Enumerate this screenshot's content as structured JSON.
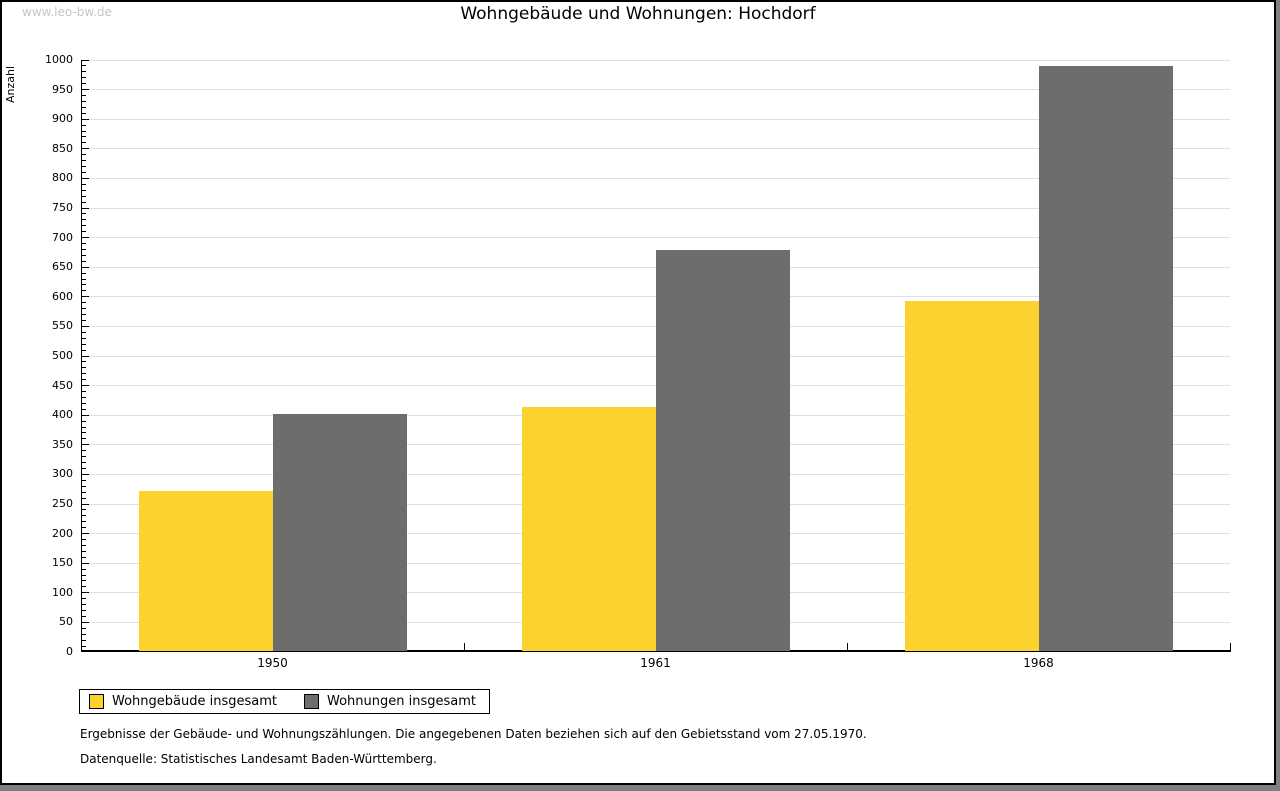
{
  "watermark": "www.leo-bw.de",
  "title": "Wohngebäude und Wohnungen: Hochdorf",
  "footer": {
    "line1": "Ergebnisse der Gebäude- und Wohnungszählungen. Die angegebenen Daten beziehen sich auf den Gebietsstand vom 27.05.1970.",
    "line2": "Datenquelle: Statistisches Landesamt Baden-Württemberg."
  },
  "colors": {
    "series_wohngebaeude": "#FCD22F",
    "series_wohnungen": "#6D6D6D",
    "gridline": "#E0E0E0",
    "watermark_text": "#C6C6C6",
    "frame_shadow": "#808080"
  },
  "legend": {
    "item1": "Wohngebäude insgesamt",
    "item2": "Wohnungen insgesamt"
  },
  "chart_data": {
    "type": "bar",
    "title": "Wohngebäude und Wohnungen: Hochdorf",
    "xlabel": "",
    "ylabel": "Anzahl",
    "categories": [
      "1950",
      "1961",
      "1968"
    ],
    "series": [
      {
        "name": "Wohngebäude insgesamt",
        "color": "#FCD22F",
        "values": [
          270,
          412,
          591
        ]
      },
      {
        "name": "Wohnungen insgesamt",
        "color": "#6D6D6D",
        "values": [
          400,
          678,
          989
        ]
      }
    ],
    "ylim": [
      0,
      1000
    ],
    "ytick_major": 50,
    "ytick_minor": 10,
    "grid": true,
    "legend_position": "bottom-left"
  }
}
